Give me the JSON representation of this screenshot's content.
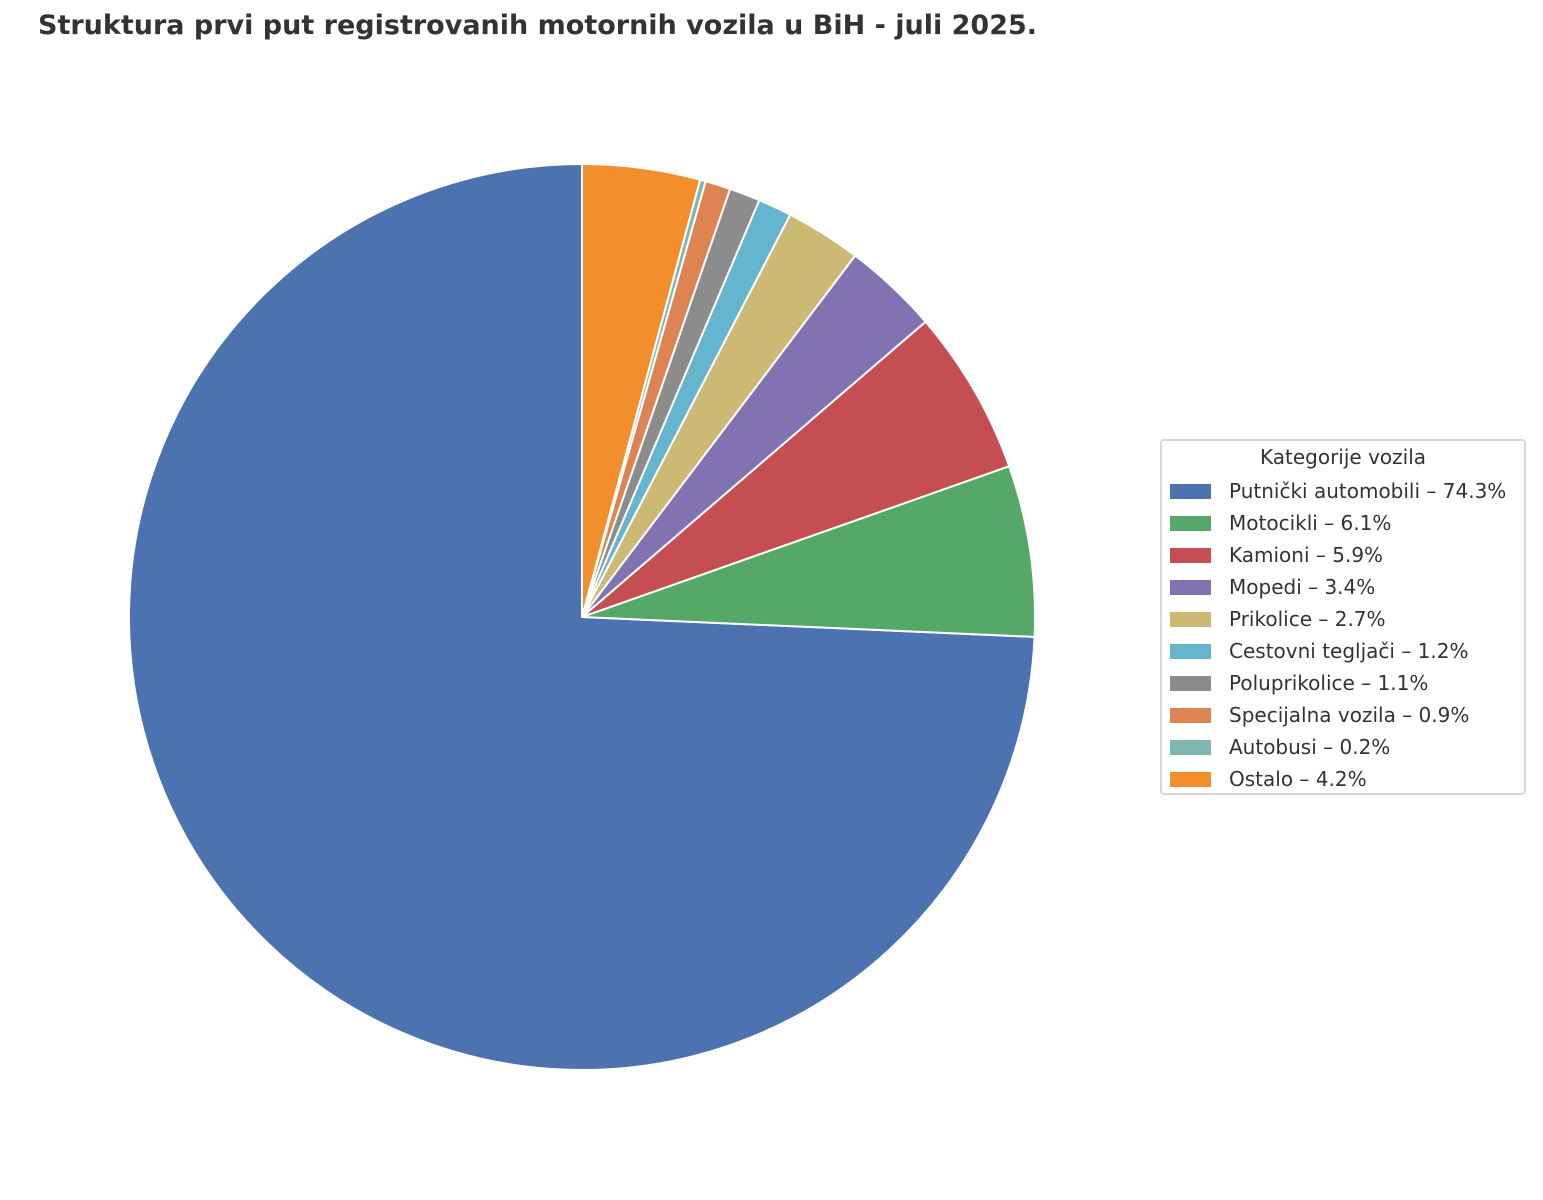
{
  "chart_data": {
    "type": "pie",
    "title": "Struktura prvi put registrovanih motornih vozila u BiH - juli 2025.",
    "legend_title": "Kategorije vozila",
    "legend_placement": "right",
    "start_angle_deg": 90,
    "direction": "counterclockwise",
    "slices": [
      {
        "name": "Putnički automobili",
        "value": 74.3,
        "label": "Putnički automobili – 74.3%",
        "color": "#4c72b0"
      },
      {
        "name": "Motocikli",
        "value": 6.1,
        "label": "Motocikli – 6.1%",
        "color": "#55a868"
      },
      {
        "name": "Kamioni",
        "value": 5.9,
        "label": "Kamioni – 5.9%",
        "color": "#c44e52"
      },
      {
        "name": "Mopedi",
        "value": 3.4,
        "label": "Mopedi – 3.4%",
        "color": "#8172b2"
      },
      {
        "name": "Prikolice",
        "value": 2.7,
        "label": "Prikolice – 2.7%",
        "color": "#ccb974"
      },
      {
        "name": "Cestovni tegljači",
        "value": 1.2,
        "label": "Cestovni tegljači – 1.2%",
        "color": "#64b5cd"
      },
      {
        "name": "Poluprikolice",
        "value": 1.1,
        "label": "Poluprikolice – 1.1%",
        "color": "#8c8c8c"
      },
      {
        "name": "Specijalna vozila",
        "value": 0.9,
        "label": "Specijalna vozila – 0.9%",
        "color": "#dd8452"
      },
      {
        "name": "Autobusi",
        "value": 0.2,
        "label": "Autobusi – 0.2%",
        "color": "#7fb7b0"
      },
      {
        "name": "Ostalo",
        "value": 4.2,
        "label": "Ostalo – 4.2%",
        "color": "#f28e2b"
      }
    ]
  }
}
